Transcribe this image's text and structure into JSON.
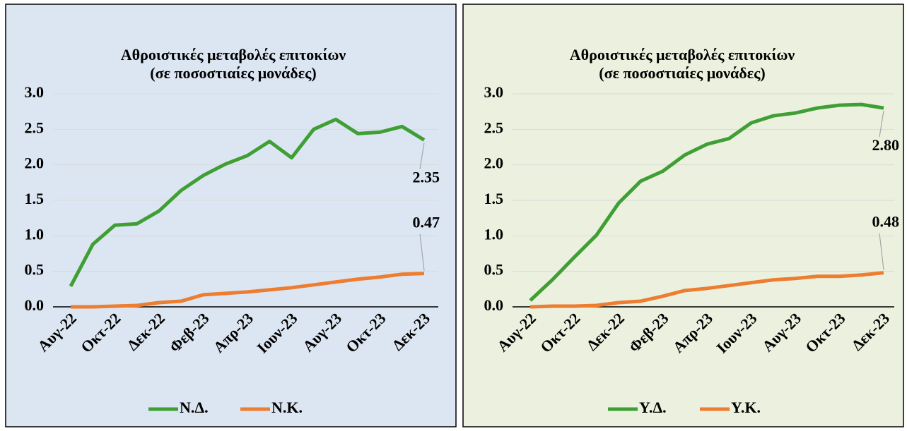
{
  "chart_data": [
    {
      "type": "line",
      "title": "Αθροιστικές μεταβολές επιτοκίων",
      "subtitle": "(σε ποσοστιαίες μονάδες)",
      "categories": [
        "Αυγ-22",
        null,
        "Οκτ-22",
        null,
        "Δεκ-22",
        null,
        "Φεβ-23",
        null,
        "Απρ-23",
        null,
        "Ιουν-23",
        null,
        "Αυγ-23",
        null,
        "Οκτ-23",
        null,
        "Δεκ-23"
      ],
      "series": [
        {
          "name": "Ν.Δ.",
          "color": "#3f9f35",
          "values": [
            0.29,
            0.88,
            1.15,
            1.17,
            1.35,
            1.64,
            1.85,
            2.01,
            2.13,
            2.33,
            2.1,
            2.5,
            2.64,
            2.44,
            2.46,
            2.54,
            2.35
          ],
          "value_labels": [
            null,
            null,
            null,
            null,
            null,
            null,
            null,
            null,
            null,
            null,
            null,
            null,
            null,
            null,
            null,
            null,
            "2.35"
          ]
        },
        {
          "name": "Ν.Κ.",
          "color": "#ed7d31",
          "values": [
            0,
            0,
            0.01,
            0.02,
            0.06,
            0.08,
            0.17,
            0.19,
            0.21,
            0.24,
            0.27,
            0.31,
            0.35,
            0.39,
            0.42,
            0.46,
            0.47
          ],
          "value_labels": [
            null,
            null,
            null,
            null,
            null,
            null,
            null,
            null,
            null,
            null,
            null,
            null,
            null,
            null,
            null,
            null,
            "0.47"
          ]
        }
      ],
      "ylim": [
        0,
        3
      ],
      "yticks": [
        {
          "value": 0,
          "label": "0.0"
        },
        0.5,
        {
          "value": 1,
          "label": "1.0"
        },
        1.5,
        {
          "value": 2,
          "label": "2.0"
        },
        2.5,
        {
          "value": 3,
          "label": "3.0"
        }
      ],
      "grid": true,
      "legend": "bottom"
    },
    {
      "type": "line",
      "title": "Αθροιστικές μεταβολές επιτοκίων",
      "subtitle": "(σε ποσοστιαίες μονάδες)",
      "categories": [
        "Αυγ-22",
        null,
        "Οκτ-22",
        null,
        "Δεκ-22",
        null,
        "Φεβ-23",
        null,
        "Απρ-23",
        null,
        "Ιουν-23",
        null,
        "Αυγ-23",
        null,
        "Οκτ-23",
        null,
        "Δεκ-23"
      ],
      "series": [
        {
          "name": "Υ.Δ.",
          "color": "#3f9f35",
          "values": [
            0.09,
            0.38,
            0.7,
            1.01,
            1.46,
            1.77,
            1.91,
            2.14,
            2.29,
            2.37,
            2.59,
            2.69,
            2.73,
            2.8,
            2.84,
            2.85,
            2.8
          ],
          "value_labels": [
            null,
            null,
            null,
            null,
            null,
            null,
            null,
            null,
            null,
            null,
            null,
            null,
            null,
            null,
            null,
            null,
            "2.80"
          ]
        },
        {
          "name": "Υ.Κ.",
          "color": "#ed7d31",
          "values": [
            0,
            0.01,
            0.01,
            0.02,
            0.06,
            0.08,
            0.15,
            0.23,
            0.26,
            0.3,
            0.34,
            0.38,
            0.4,
            0.43,
            0.43,
            0.45,
            0.48
          ],
          "value_labels": [
            null,
            null,
            null,
            null,
            null,
            null,
            null,
            null,
            null,
            null,
            null,
            null,
            null,
            null,
            null,
            null,
            "0.48"
          ]
        }
      ],
      "ylim": [
        0,
        3
      ],
      "yticks": [
        {
          "value": 0,
          "label": "0.0"
        },
        0.5,
        {
          "value": 1,
          "label": "1.0"
        },
        1.5,
        {
          "value": 2,
          "label": "2.0"
        },
        2.5,
        {
          "value": 3,
          "label": "3.0"
        }
      ],
      "grid": true,
      "legend": "bottom"
    }
  ]
}
